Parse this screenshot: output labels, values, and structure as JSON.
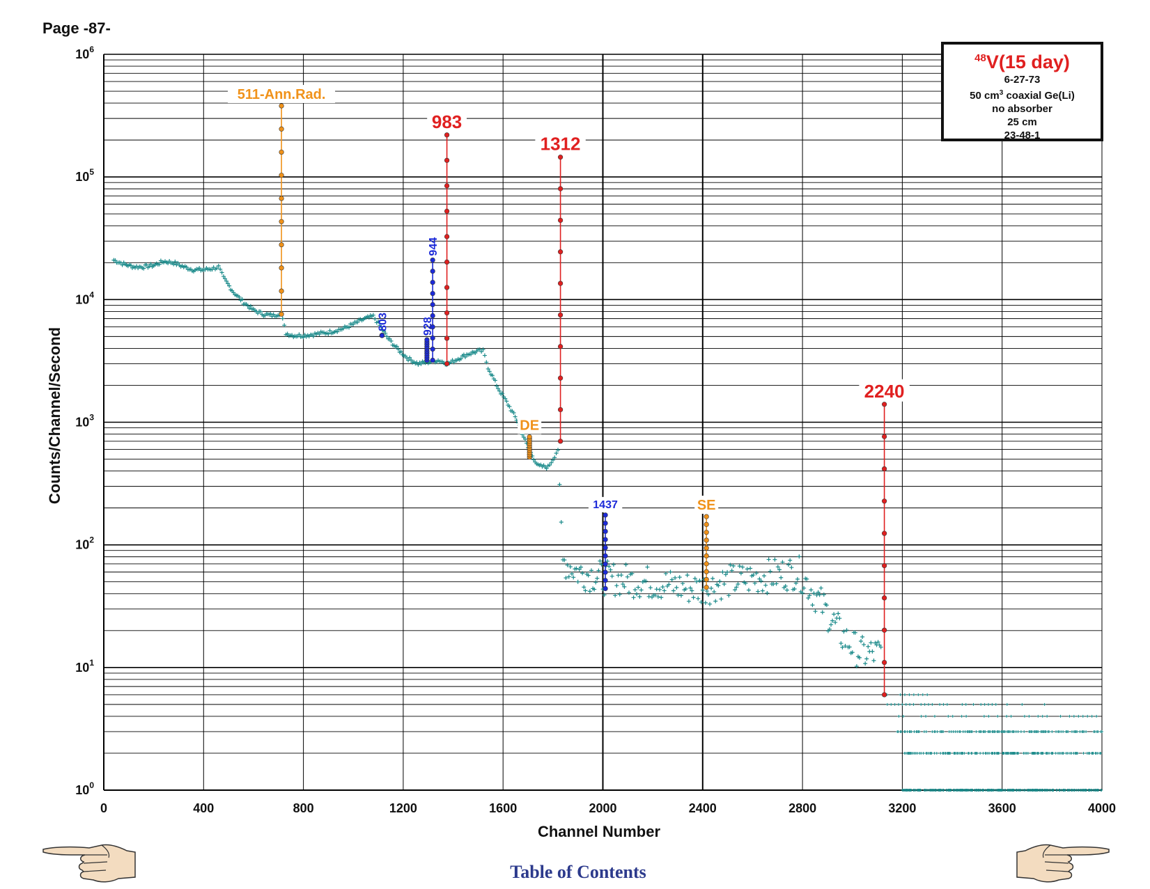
{
  "page": {
    "label": "Page -87-"
  },
  "info_box": {
    "isotope_sup": "48",
    "isotope_main": "V(15 day)",
    "date": "6-27-73",
    "detector_prefix": "50 cm",
    "detector_sup": "3",
    "detector_suffix": " coaxial Ge(Li)",
    "absorber": "no absorber",
    "distance": "25 cm",
    "id": "23-48-1"
  },
  "navigation": {
    "toc_label": "Table of Contents",
    "prev_icon": "pointing-hand-left-icon",
    "next_icon": "pointing-hand-right-icon"
  },
  "colors": {
    "background_series": "#1a8a8a",
    "peak_red": "#e02020",
    "peak_orange": "#f0921a",
    "peak_blue": "#1c2ad8",
    "grid": "#000000",
    "link": "#2c3a8c"
  },
  "chart_data": {
    "type": "scatter",
    "xlabel": "Channel Number",
    "ylabel": "Counts/Channel/Second",
    "xlim": [
      0,
      4000
    ],
    "ylim": [
      1,
      1000000
    ],
    "yscale": "log",
    "grid": true,
    "x_ticks": [
      "0",
      "400",
      "800",
      "1200",
      "1600",
      "2000",
      "2400",
      "2800",
      "3200",
      "3600",
      "4000"
    ],
    "y_ticks": [
      {
        "base": "10",
        "exp": "0",
        "value": 1
      },
      {
        "base": "10",
        "exp": "1",
        "value": 10
      },
      {
        "base": "10",
        "exp": "2",
        "value": 100
      },
      {
        "base": "10",
        "exp": "3",
        "value": 1000
      },
      {
        "base": "10",
        "exp": "4",
        "value": 10000
      },
      {
        "base": "10",
        "exp": "5",
        "value": 100000
      },
      {
        "base": "10",
        "exp": "6",
        "value": 1000000
      }
    ],
    "background_series": {
      "name": "",
      "points": [
        [
          40,
          21000
        ],
        [
          80,
          19500
        ],
        [
          120,
          18500
        ],
        [
          160,
          18500
        ],
        [
          200,
          19000
        ],
        [
          240,
          20500
        ],
        [
          280,
          20000
        ],
        [
          320,
          18500
        ],
        [
          360,
          17500
        ],
        [
          400,
          17500
        ],
        [
          440,
          18000
        ],
        [
          460,
          18500
        ],
        [
          480,
          15000
        ],
        [
          520,
          11500
        ],
        [
          560,
          9500
        ],
        [
          600,
          8200
        ],
        [
          640,
          7600
        ],
        [
          680,
          7400
        ],
        [
          710,
          7800
        ],
        [
          730,
          5300
        ],
        [
          760,
          5100
        ],
        [
          800,
          5100
        ],
        [
          840,
          5200
        ],
        [
          900,
          5400
        ],
        [
          960,
          5800
        ],
        [
          1000,
          6300
        ],
        [
          1040,
          6900
        ],
        [
          1080,
          7300
        ],
        [
          1100,
          6400
        ],
        [
          1140,
          4800
        ],
        [
          1180,
          3900
        ],
        [
          1220,
          3300
        ],
        [
          1260,
          3000
        ],
        [
          1300,
          3100
        ],
        [
          1340,
          3200
        ],
        [
          1380,
          3000
        ],
        [
          1420,
          3300
        ],
        [
          1460,
          3600
        ],
        [
          1500,
          3800
        ],
        [
          1520,
          3800
        ],
        [
          1540,
          2800
        ],
        [
          1580,
          1900
        ],
        [
          1620,
          1400
        ],
        [
          1660,
          1000
        ],
        [
          1700,
          620
        ],
        [
          1740,
          440
        ],
        [
          1780,
          430
        ],
        [
          1800,
          500
        ],
        [
          1820,
          600
        ],
        [
          1840,
          75
        ],
        [
          1900,
          60
        ],
        [
          1960,
          57
        ],
        [
          2000,
          54
        ],
        [
          2080,
          52
        ],
        [
          2160,
          50
        ],
        [
          2240,
          48
        ],
        [
          2320,
          45
        ],
        [
          2400,
          44
        ],
        [
          2440,
          46
        ],
        [
          2480,
          50
        ],
        [
          2560,
          52
        ],
        [
          2640,
          55
        ],
        [
          2720,
          58
        ],
        [
          2780,
          60
        ],
        [
          2800,
          55
        ],
        [
          2840,
          42
        ],
        [
          2880,
          32
        ],
        [
          2920,
          24
        ],
        [
          2960,
          18
        ],
        [
          3000,
          15
        ],
        [
          3040,
          13
        ],
        [
          3080,
          13
        ],
        [
          3120,
          13
        ]
      ]
    },
    "peaks": [
      {
        "label": "511-Ann.Rad.",
        "energy": 511,
        "channel": 712,
        "top": 380000,
        "base": 7600,
        "color_key": "peak_orange",
        "label_size": 20,
        "vertical": false
      },
      {
        "label": "803",
        "energy": 803,
        "channel": 1115,
        "top": 5100,
        "base": 5100,
        "color_key": "peak_blue",
        "label_size": 16,
        "vertical": true
      },
      {
        "label": "928",
        "energy": 928,
        "channel": 1295,
        "top": 4700,
        "base": 3200,
        "color_key": "peak_blue",
        "label_size": 16,
        "vertical": true
      },
      {
        "label": "944",
        "energy": 944,
        "channel": 1318,
        "top": 21000,
        "base": 3200,
        "color_key": "peak_blue",
        "label_size": 16,
        "vertical": true
      },
      {
        "label": "983",
        "energy": 983,
        "channel": 1375,
        "top": 220000,
        "base": 3000,
        "color_key": "peak_red",
        "label_size": 26,
        "vertical": false
      },
      {
        "label": "1312",
        "energy": 1312,
        "channel": 1830,
        "top": 145000,
        "base": 700,
        "color_key": "peak_red",
        "label_size": 26,
        "vertical": false
      },
      {
        "label": "DE",
        "energy": null,
        "channel": 1706,
        "top": 760,
        "base": 520,
        "color_key": "peak_orange",
        "label_size": 20,
        "vertical": false
      },
      {
        "label": "1437",
        "energy": 1437,
        "channel": 2010,
        "top": 175,
        "base": 44,
        "color_key": "peak_blue",
        "label_size": 16,
        "vertical": false
      },
      {
        "label": "SE",
        "energy": null,
        "channel": 2415,
        "top": 170,
        "base": 45,
        "color_key": "peak_orange",
        "label_size": 20,
        "vertical": false
      },
      {
        "label": "2240",
        "energy": 2240,
        "channel": 3128,
        "top": 1400,
        "base": 6,
        "color_key": "peak_red",
        "label_size": 26,
        "vertical": false
      }
    ]
  }
}
